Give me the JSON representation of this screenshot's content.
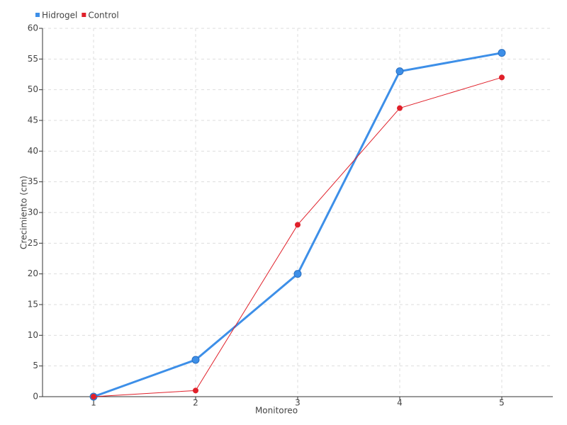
{
  "chart_data": {
    "type": "line",
    "x_label": "Monitoreo",
    "y_label": "Crecimiento (cm)",
    "x": [
      1,
      2,
      3,
      4,
      5
    ],
    "series": [
      {
        "name": "Hidrogel",
        "color": "#3d8fe8",
        "values": [
          0,
          6,
          20,
          53,
          56
        ]
      },
      {
        "name": "Control",
        "color": "#e0202a",
        "values": [
          0,
          1,
          28,
          47,
          52
        ]
      }
    ],
    "xlim": [
      0.5,
      5.5
    ],
    "xticks": [
      1,
      2,
      3,
      4,
      5
    ],
    "ylim": [
      0,
      60
    ],
    "yticks": [
      0,
      5,
      10,
      15,
      20,
      25,
      30,
      35,
      40,
      45,
      50,
      55,
      60
    ],
    "grid": true,
    "legend": "top-left"
  }
}
